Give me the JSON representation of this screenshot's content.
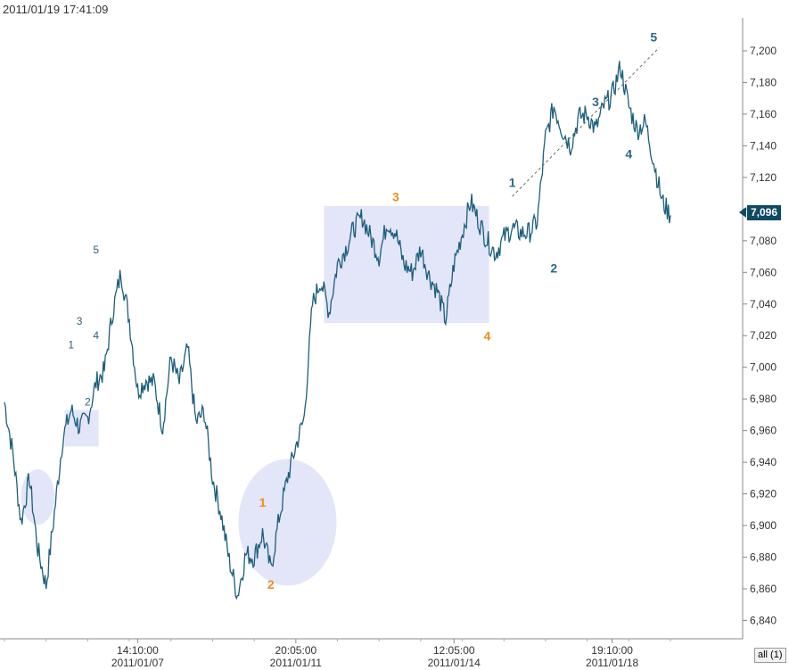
{
  "timestamp": "2011/01/19 17:41:09",
  "last_price_label": "7,096",
  "range_button": "all (1)",
  "colors": {
    "price": "#1b5e7c",
    "wave_major": "#2b6a86",
    "wave_orange": "#f08c1a",
    "highlight": "#e3e5f8"
  },
  "chart_data": {
    "type": "line",
    "title": "",
    "xlabel": "",
    "ylabel": "",
    "ylim": [
      6832,
      7218
    ],
    "yticks": [
      6840,
      6860,
      6880,
      6900,
      6920,
      6940,
      6960,
      6980,
      7000,
      7020,
      7040,
      7060,
      7080,
      7100,
      7120,
      7140,
      7160,
      7180,
      7200
    ],
    "ytick_labels": [
      "6,840",
      "6,860",
      "6,880",
      "6,900",
      "6,920",
      "6,940",
      "6,960",
      "6,980",
      "7,000",
      "7,020",
      "7,040",
      "7,060",
      "7,080",
      "7,100",
      "7,120",
      "7,140",
      "7,160",
      "7,180",
      "7,200"
    ],
    "xticks": [
      {
        "label": "14:10:00",
        "date": "2011/01/07",
        "i": 16
      },
      {
        "label": "20:05:00",
        "date": "2011/01/11",
        "i": 35
      },
      {
        "label": "12:05:00",
        "date": "2011/01/14",
        "i": 54
      },
      {
        "label": "19:10:00",
        "date": "2011/01/18",
        "i": 73
      }
    ],
    "last_value": 7096,
    "series": [
      {
        "values": [
          6978,
          6946,
          6902,
          6930,
          6885,
          6862,
          6908,
          6955,
          6973,
          6962,
          6968,
          6990,
          6998,
          7035,
          7060,
          7030,
          6985,
          6992,
          6990,
          6962,
          7006,
          6990,
          7012,
          6965,
          6972,
          6930,
          6908,
          6878,
          6856,
          6882,
          6880,
          6895,
          6872,
          6905,
          6930,
          6950,
          6968,
          7040,
          7055,
          7035,
          7065,
          7075,
          7088,
          7095,
          7082,
          7070,
          7092,
          7085,
          7065,
          7060,
          7075,
          7058,
          7048,
          7030,
          7065,
          7085,
          7105,
          7092,
          7080,
          7072,
          7082,
          7088,
          7085,
          7085,
          7092,
          7145,
          7165,
          7150,
          7140,
          7158,
          7160,
          7150,
          7165,
          7172,
          7190,
          7165,
          7150,
          7155,
          7130,
          7105,
          7096
        ]
      }
    ],
    "wave_labels": [
      {
        "text": "1",
        "i": 8,
        "y": 7012,
        "color": "wave_minor"
      },
      {
        "text": "2",
        "i": 10,
        "y": 6976,
        "color": "wave_minor"
      },
      {
        "text": "3",
        "i": 9,
        "y": 7027,
        "color": "wave_minor"
      },
      {
        "text": "4",
        "i": 11,
        "y": 7018,
        "color": "wave_minor"
      },
      {
        "text": "5",
        "i": 11,
        "y": 7072,
        "color": "wave_minor"
      },
      {
        "text": "1",
        "i": 31,
        "y": 6912,
        "color": "wave_orange"
      },
      {
        "text": "2",
        "i": 32,
        "y": 6860,
        "color": "wave_orange"
      },
      {
        "text": "3",
        "i": 47,
        "y": 7105,
        "color": "wave_orange"
      },
      {
        "text": "4",
        "i": 58,
        "y": 7017,
        "color": "wave_orange"
      },
      {
        "text": "1",
        "i": 61,
        "y": 7114,
        "color": "wave_major"
      },
      {
        "text": "2",
        "i": 66,
        "y": 7060,
        "color": "wave_major"
      },
      {
        "text": "3",
        "i": 71,
        "y": 7165,
        "color": "wave_major"
      },
      {
        "text": "4",
        "i": 75,
        "y": 7132,
        "color": "wave_major"
      },
      {
        "text": "5",
        "i": 78,
        "y": 7206,
        "color": "wave_major"
      }
    ]
  }
}
